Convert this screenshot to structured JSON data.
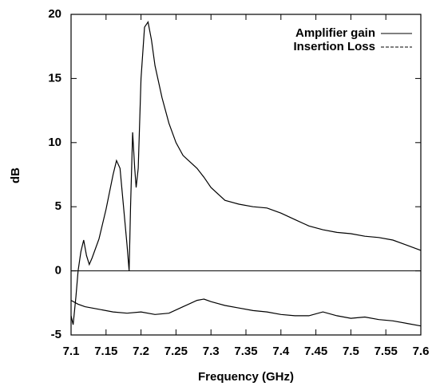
{
  "chart_data": {
    "type": "line",
    "xlabel": "Frequency (GHz)",
    "ylabel": "dB",
    "xlim": [
      7.1,
      7.6
    ],
    "xticks": [
      7.1,
      7.15,
      7.2,
      7.25,
      7.3,
      7.35,
      7.4,
      7.45,
      7.5,
      7.55,
      7.6
    ],
    "ylim": [
      -5,
      20
    ],
    "yticks": [
      -5,
      0,
      5,
      10,
      15,
      20
    ],
    "zero_axis": true,
    "legend": "upper right",
    "series": [
      {
        "name": "Amplifier gain",
        "color": "#000000",
        "x": [
          7.1,
          7.103,
          7.107,
          7.11,
          7.114,
          7.118,
          7.122,
          7.126,
          7.13,
          7.14,
          7.15,
          7.16,
          7.165,
          7.17,
          7.175,
          7.18,
          7.183,
          7.185,
          7.188,
          7.191,
          7.193,
          7.196,
          7.2,
          7.205,
          7.21,
          7.215,
          7.22,
          7.23,
          7.24,
          7.25,
          7.26,
          7.27,
          7.28,
          7.29,
          7.3,
          7.32,
          7.34,
          7.36,
          7.38,
          7.4,
          7.42,
          7.44,
          7.46,
          7.48,
          7.5,
          7.52,
          7.54,
          7.56,
          7.58,
          7.6
        ],
        "values": [
          -3.5,
          -4.2,
          -2.0,
          0.0,
          1.5,
          2.4,
          1.2,
          0.5,
          1.0,
          2.5,
          4.8,
          7.5,
          8.6,
          8.0,
          5.0,
          2.0,
          0.0,
          5.0,
          10.8,
          8.0,
          6.5,
          8.0,
          15.0,
          19.0,
          19.4,
          18.0,
          16.0,
          13.5,
          11.5,
          10.0,
          9.0,
          8.5,
          8.0,
          7.3,
          6.5,
          5.5,
          5.2,
          5.0,
          4.9,
          4.5,
          4.0,
          3.5,
          3.2,
          3.0,
          2.9,
          2.7,
          2.6,
          2.4,
          2.0,
          1.6
        ]
      },
      {
        "name": "Insertion Loss",
        "color": "#000000",
        "x": [
          7.1,
          7.11,
          7.12,
          7.14,
          7.16,
          7.18,
          7.2,
          7.22,
          7.24,
          7.26,
          7.28,
          7.29,
          7.3,
          7.32,
          7.34,
          7.36,
          7.38,
          7.4,
          7.42,
          7.44,
          7.46,
          7.48,
          7.5,
          7.52,
          7.54,
          7.56,
          7.58,
          7.6
        ],
        "values": [
          -2.3,
          -2.6,
          -2.8,
          -3.0,
          -3.2,
          -3.3,
          -3.2,
          -3.4,
          -3.3,
          -2.8,
          -2.3,
          -2.2,
          -2.4,
          -2.7,
          -2.9,
          -3.1,
          -3.2,
          -3.4,
          -3.5,
          -3.5,
          -3.2,
          -3.5,
          -3.7,
          -3.6,
          -3.8,
          -3.9,
          -4.1,
          -4.3
        ]
      }
    ]
  }
}
